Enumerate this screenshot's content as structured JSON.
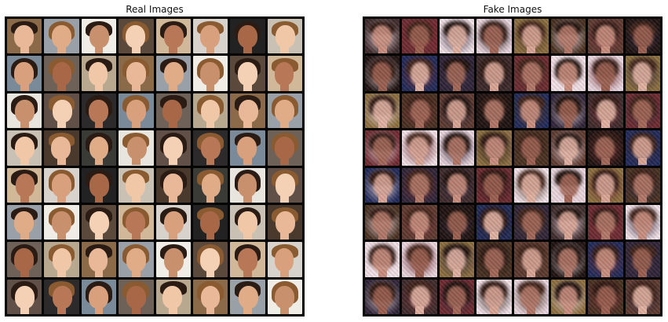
{
  "panels": {
    "real": {
      "title": "Real Images"
    },
    "fake": {
      "title": "Fake Images"
    }
  },
  "grid": {
    "rows": 8,
    "cols": 8
  },
  "palette": {
    "real_backgrounds": [
      "#3a3a36",
      "#8a6a48",
      "#c9c2b4",
      "#6e6258",
      "#d8d2cc",
      "#2c2a2a",
      "#5b4a3c",
      "#e8e4de",
      "#9aa0a8",
      "#4a3a2e",
      "#b8a890",
      "#222222",
      "#7a8a98",
      "#d0b898",
      "#605048",
      "#f0ece6"
    ],
    "real_skin": [
      "#e8b898",
      "#d8a07c",
      "#c8906c",
      "#f0c8a8",
      "#b87858",
      "#e0ac88",
      "#a86848",
      "#f4d0b4"
    ],
    "real_hair": [
      "#2a1c14",
      "#6a4428",
      "#c89860",
      "#1a1410",
      "#8a5a30",
      "#d8b078",
      "#3a2418",
      "#4a3020"
    ],
    "fake_backgrounds": [
      "#1a1210",
      "#3a2a2c",
      "#e8d8e0",
      "#5a3a30",
      "#2a2438",
      "#f0e4ea",
      "#443020",
      "#1c2a5a",
      "#6a2a30",
      "#8a7040"
    ],
    "fake_skin": [
      "#c89080",
      "#b07868",
      "#d8a898",
      "#a06858",
      "#e0b4a4",
      "#986050"
    ],
    "fake_hair": [
      "#2a1812",
      "#4a2a1a",
      "#1a100c",
      "#6a3a22",
      "#3a2218",
      "#8a4a2a"
    ]
  }
}
